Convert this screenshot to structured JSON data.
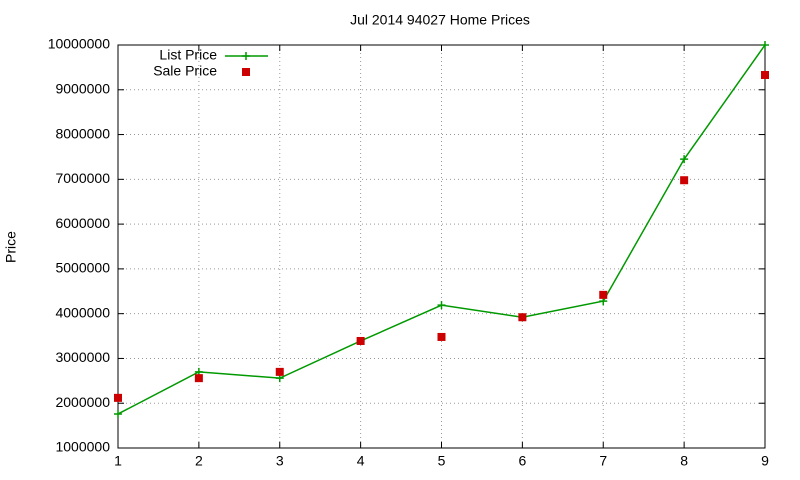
{
  "chart_data": {
    "type": "line",
    "title": "Jul 2014 94027 Home Prices",
    "y_label": "Price",
    "x": [
      1,
      2,
      3,
      4,
      5,
      6,
      7,
      8,
      9
    ],
    "xlim": [
      1,
      9
    ],
    "xticks": [
      1,
      2,
      3,
      4,
      5,
      6,
      7,
      8,
      9
    ],
    "ylim": [
      1000000,
      10000000
    ],
    "yticks": [
      1000000,
      2000000,
      3000000,
      4000000,
      5000000,
      6000000,
      7000000,
      8000000,
      9000000,
      10000000
    ],
    "grid": true,
    "legend": "top-left",
    "series": [
      {
        "name": "List Price",
        "color": "#009900",
        "style": "linespoints",
        "values": [
          1760000,
          2700000,
          2560000,
          3390000,
          4190000,
          3920000,
          4280000,
          7450000,
          10000000
        ]
      },
      {
        "name": "Sale Price",
        "color": "#cc0000",
        "style": "points",
        "values": [
          2120000,
          2560000,
          2700000,
          3390000,
          3480000,
          3920000,
          4420000,
          6980000,
          9330000
        ]
      }
    ]
  }
}
